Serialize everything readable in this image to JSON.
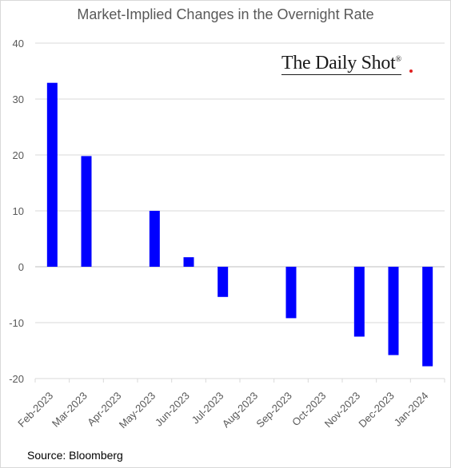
{
  "chart_data": {
    "type": "bar",
    "title": "Market-Implied Changes in the Overnight Rate",
    "categories": [
      "Feb-2023",
      "Mar-2023",
      "Apr-2023",
      "May-2023",
      "Jun-2023",
      "Jul-2023",
      "Aug-2023",
      "Sep-2023",
      "Oct-2023",
      "Nov-2023",
      "Dec-2023",
      "Jan-2024"
    ],
    "values": [
      32.9,
      19.8,
      null,
      10.0,
      1.7,
      -5.4,
      null,
      -9.2,
      null,
      -12.5,
      -15.8,
      -17.8
    ],
    "ylim": [
      -20,
      40
    ],
    "yticks": [
      40,
      30,
      20,
      10,
      0,
      -10,
      -20
    ],
    "grid": true,
    "bar_color": "#0000ff",
    "source": "Source: Bloomberg",
    "brand": "The Daily Shot",
    "brand_mark": "®"
  }
}
